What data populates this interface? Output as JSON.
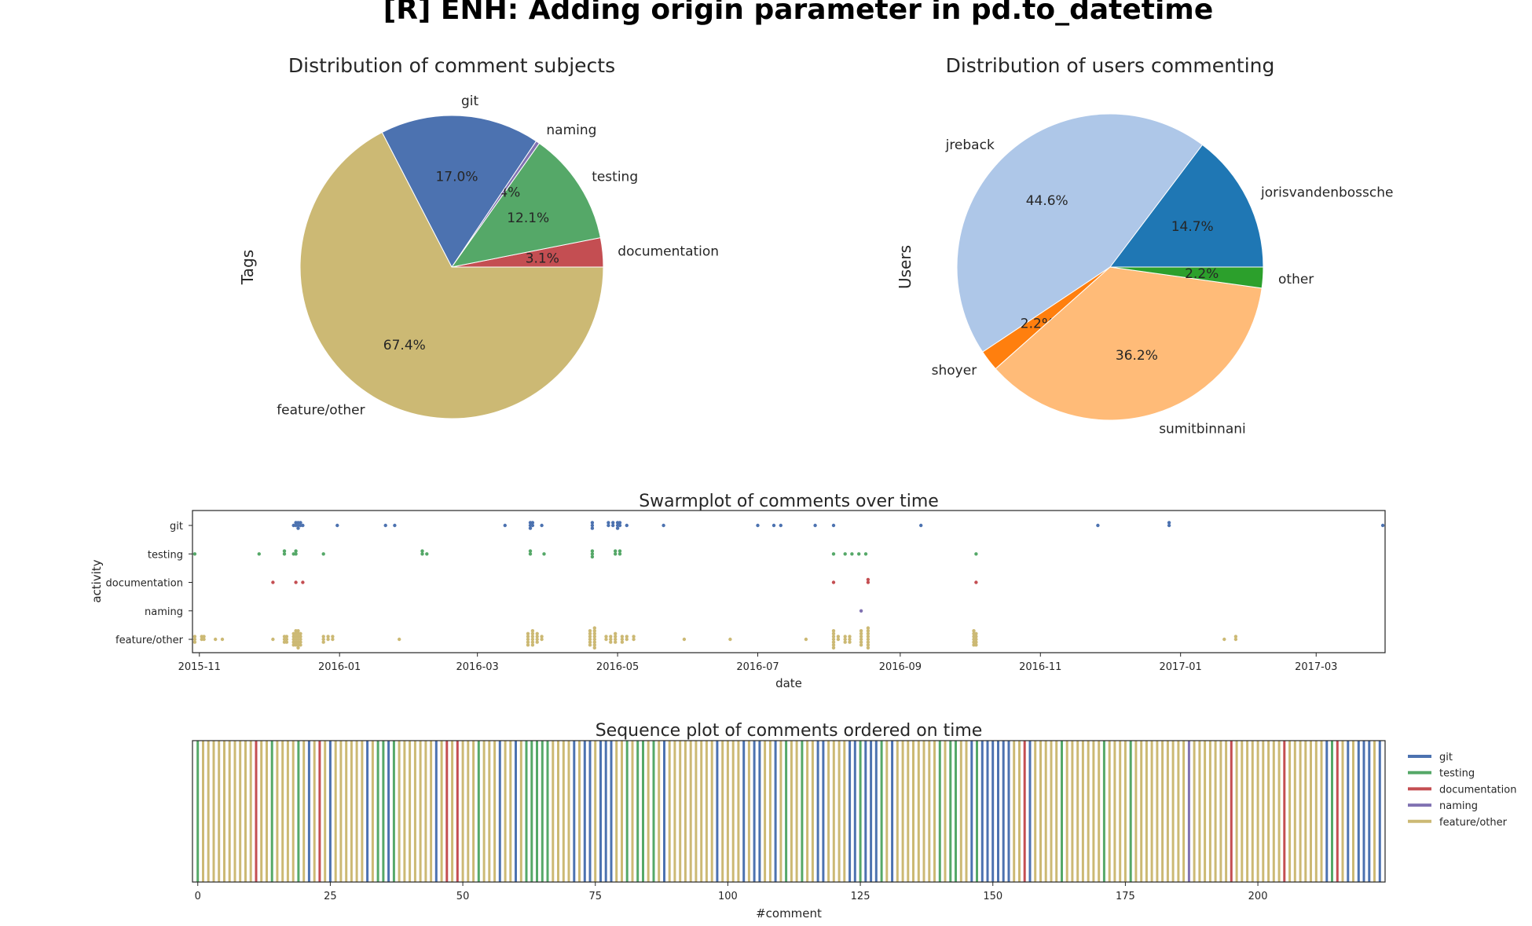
{
  "suptitle": "[R] ENH: Adding origin parameter in pd.to_datetime",
  "colors": {
    "git": "#4c72b0",
    "testing": "#55a868",
    "documentation": "#c44e52",
    "naming": "#8172b2",
    "feature/other": "#ccb974",
    "jorisvandenbossche": "#1f77b4",
    "jreback": "#aec7e8",
    "shoyer": "#ff7f0e",
    "sumitbinnani": "#ffbb78",
    "other": "#2ca02c"
  },
  "chart_data": [
    {
      "type": "pie",
      "title": "Distribution of comment subjects",
      "ylabel": "Tags",
      "startangle_deg": 0,
      "slices": [
        {
          "label": "documentation",
          "pct_label": "3.1%",
          "value": 3.1
        },
        {
          "label": "testing",
          "pct_label": "12.1%",
          "value": 12.1
        },
        {
          "label": "naming",
          "pct_label": "0.4%",
          "value": 0.4
        },
        {
          "label": "git",
          "pct_label": "17.0%",
          "value": 17.0
        },
        {
          "label": "feature/other",
          "pct_label": "67.4%",
          "value": 67.4
        }
      ]
    },
    {
      "type": "pie",
      "title": "Distribution of users commenting",
      "ylabel": "Users",
      "startangle_deg": 0,
      "slices": [
        {
          "label": "jorisvandenbossche",
          "pct_label": "14.7%",
          "value": 14.7
        },
        {
          "label": "jreback",
          "pct_label": "44.6%",
          "value": 44.6
        },
        {
          "label": "shoyer",
          "pct_label": "2.2%",
          "value": 2.2
        },
        {
          "label": "sumitbinnani",
          "pct_label": "36.2%",
          "value": 36.2
        },
        {
          "label": "other",
          "pct_label": "2.2%",
          "value": 2.2
        }
      ]
    },
    {
      "type": "scatter",
      "title": "Swarmplot of comments over time",
      "xlabel": "date",
      "ylabel": "activity",
      "categories": [
        "git",
        "testing",
        "documentation",
        "naming",
        "feature/other"
      ],
      "xlim": [
        "2015-10-29",
        "2017-03-31"
      ],
      "xticks": [
        "2015-11",
        "2016-01",
        "2016-03",
        "2016-05",
        "2016-07",
        "2016-09",
        "2016-11",
        "2017-01",
        "2017-03"
      ],
      "points": {
        "git": [
          [
            "2015-12-12",
            1
          ],
          [
            "2015-12-13",
            2
          ],
          [
            "2015-12-14",
            3
          ],
          [
            "2015-12-15",
            2
          ],
          [
            "2015-12-16",
            1
          ],
          [
            "2015-12-31",
            1
          ],
          [
            "2016-01-21",
            1
          ],
          [
            "2016-01-25",
            1
          ],
          [
            "2016-03-13",
            1
          ],
          [
            "2016-03-24",
            3
          ],
          [
            "2016-03-25",
            2
          ],
          [
            "2016-03-29",
            1
          ],
          [
            "2016-04-20",
            3
          ],
          [
            "2016-04-27",
            2
          ],
          [
            "2016-04-29",
            2
          ],
          [
            "2016-05-01",
            3
          ],
          [
            "2016-05-02",
            2
          ],
          [
            "2016-05-05",
            1
          ],
          [
            "2016-05-21",
            1
          ],
          [
            "2016-07-01",
            1
          ],
          [
            "2016-07-08",
            1
          ],
          [
            "2016-07-11",
            1
          ],
          [
            "2016-07-26",
            1
          ],
          [
            "2016-08-03",
            1
          ],
          [
            "2016-09-10",
            1
          ],
          [
            "2016-11-26",
            1
          ],
          [
            "2016-12-27",
            2
          ],
          [
            "2017-03-30",
            1
          ]
        ],
        "testing": [
          [
            "2015-10-30",
            1
          ],
          [
            "2015-11-27",
            1
          ],
          [
            "2015-12-08",
            2
          ],
          [
            "2015-12-12",
            1
          ],
          [
            "2015-12-13",
            2
          ],
          [
            "2015-12-25",
            1
          ],
          [
            "2016-02-06",
            2
          ],
          [
            "2016-02-08",
            1
          ],
          [
            "2016-03-24",
            2
          ],
          [
            "2016-03-30",
            1
          ],
          [
            "2016-04-20",
            3
          ],
          [
            "2016-04-30",
            2
          ],
          [
            "2016-05-02",
            2
          ],
          [
            "2016-08-03",
            1
          ],
          [
            "2016-08-08",
            1
          ],
          [
            "2016-08-11",
            1
          ],
          [
            "2016-08-14",
            1
          ],
          [
            "2016-08-17",
            1
          ],
          [
            "2016-10-04",
            1
          ]
        ],
        "documentation": [
          [
            "2015-12-03",
            1
          ],
          [
            "2015-12-13",
            1
          ],
          [
            "2015-12-16",
            1
          ],
          [
            "2016-08-03",
            1
          ],
          [
            "2016-08-18",
            2
          ],
          [
            "2016-10-04",
            1
          ]
        ],
        "naming": [
          [
            "2016-08-15",
            1
          ]
        ],
        "feature/other": [
          [
            "2015-10-30",
            3
          ],
          [
            "2015-11-02",
            2
          ],
          [
            "2015-11-03",
            2
          ],
          [
            "2015-11-08",
            1
          ],
          [
            "2015-11-11",
            1
          ],
          [
            "2015-12-03",
            1
          ],
          [
            "2015-12-08",
            3
          ],
          [
            "2015-12-09",
            3
          ],
          [
            "2015-12-12",
            5
          ],
          [
            "2015-12-13",
            6
          ],
          [
            "2015-12-14",
            7
          ],
          [
            "2015-12-15",
            5
          ],
          [
            "2015-12-25",
            3
          ],
          [
            "2015-12-27",
            2
          ],
          [
            "2015-12-29",
            2
          ],
          [
            "2016-01-27",
            1
          ],
          [
            "2016-03-23",
            5
          ],
          [
            "2016-03-25",
            6
          ],
          [
            "2016-03-27",
            4
          ],
          [
            "2016-03-29",
            2
          ],
          [
            "2016-04-19",
            6
          ],
          [
            "2016-04-21",
            8
          ],
          [
            "2016-04-26",
            2
          ],
          [
            "2016-04-28",
            3
          ],
          [
            "2016-04-30",
            4
          ],
          [
            "2016-05-03",
            3
          ],
          [
            "2016-05-05",
            2
          ],
          [
            "2016-05-08",
            2
          ],
          [
            "2016-05-30",
            1
          ],
          [
            "2016-06-19",
            1
          ],
          [
            "2016-07-22",
            1
          ],
          [
            "2016-08-03",
            7
          ],
          [
            "2016-08-05",
            2
          ],
          [
            "2016-08-08",
            3
          ],
          [
            "2016-08-10",
            3
          ],
          [
            "2016-08-15",
            6
          ],
          [
            "2016-08-18",
            8
          ],
          [
            "2016-10-03",
            6
          ],
          [
            "2016-10-04",
            5
          ],
          [
            "2017-01-20",
            1
          ],
          [
            "2017-01-25",
            2
          ]
        ]
      }
    },
    {
      "type": "line",
      "title": "Sequence plot of comments ordered on time",
      "xlabel": "#comment",
      "xticks": [
        0,
        25,
        50,
        75,
        100,
        125,
        150,
        175,
        200
      ],
      "xlim": [
        -1,
        224
      ],
      "legend_placement": "outside right",
      "legend": [
        "git",
        "testing",
        "documentation",
        "naming",
        "feature/other"
      ],
      "special": {
        "git": [
          21,
          25,
          32,
          36,
          45,
          57,
          60,
          71,
          73,
          74,
          76,
          77,
          78,
          88,
          98,
          103,
          105,
          106,
          109,
          117,
          118,
          123,
          124,
          126,
          127,
          128,
          131,
          146,
          148,
          149,
          150,
          151,
          152,
          153,
          156,
          157,
          213,
          217,
          219,
          220,
          221,
          223
        ],
        "testing": [
          0,
          14,
          19,
          34,
          35,
          37,
          53,
          62,
          63,
          64,
          65,
          66,
          81,
          83,
          84,
          86,
          111,
          114,
          125,
          129,
          140,
          142,
          143,
          147,
          163,
          171,
          176,
          214
        ],
        "documentation": [
          11,
          23,
          47,
          49,
          156,
          195,
          205,
          215
        ],
        "naming": [
          187
        ]
      }
    }
  ]
}
